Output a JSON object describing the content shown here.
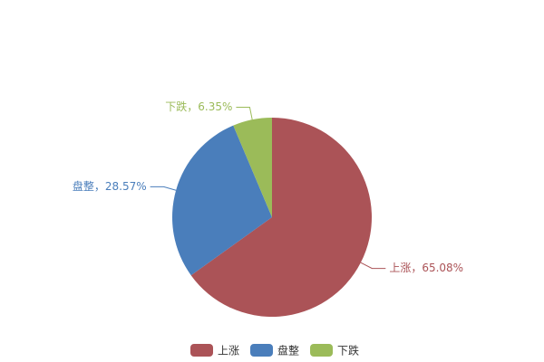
{
  "chart_data": {
    "type": "pie",
    "categories": [
      "上涨",
      "盘整",
      "下跌"
    ],
    "values": [
      65.08,
      28.57,
      6.35
    ],
    "value_labels": [
      "上涨，65.08%",
      "盘整，28.57%",
      "下跌，6.35%"
    ],
    "colors": [
      "#ab5357",
      "#4a7ebb",
      "#9bbb59"
    ],
    "legend": "bottom"
  }
}
